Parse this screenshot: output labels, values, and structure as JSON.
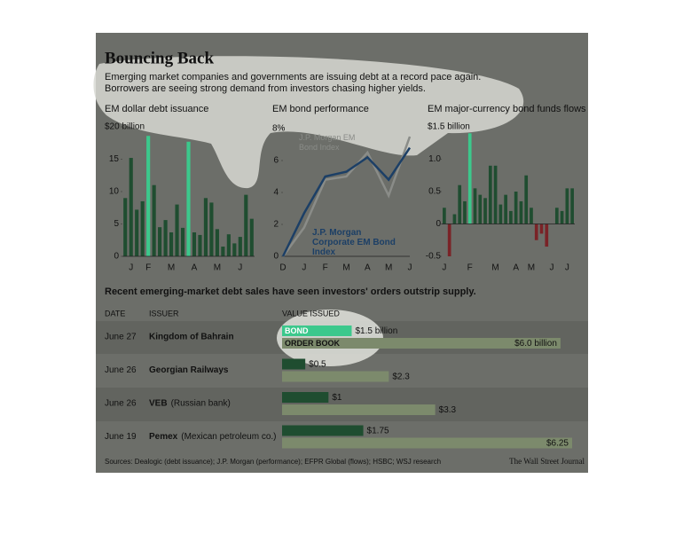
{
  "header": {
    "title": "Bouncing Back",
    "subtitle": "Emerging market companies and governments are issuing debt at a record pace again. Borrowers are seeing strong demand from investors chasing higher yields."
  },
  "chart_data": [
    {
      "type": "bar",
      "title": "EM dollar debt issuance",
      "categories": [
        null,
        "J",
        null,
        null,
        "F",
        null,
        null,
        null,
        "M",
        null,
        null,
        null,
        "A",
        null,
        null,
        null,
        "M",
        null,
        null,
        null,
        "J",
        null,
        null
      ],
      "values": [
        9,
        15.2,
        7.2,
        8.5,
        18.6,
        11,
        4.5,
        5.6,
        3.7,
        8,
        4.4,
        17.7,
        3.7,
        3.3,
        9,
        8.3,
        4.2,
        1.5,
        3.4,
        2,
        3,
        9.5,
        5.8
      ],
      "color": "#1f4d30",
      "highlight": [
        4,
        11
      ],
      "highlight_color": "#3cc88c",
      "ylim": [
        0,
        20
      ],
      "yticks": [
        0,
        5,
        10,
        15,
        {
          "value": 20,
          "label": "$20 billion"
        }
      ]
    },
    {
      "type": "line",
      "title": "EM bond performance",
      "categories": [
        "D",
        "J",
        "F",
        "M",
        "A",
        "M",
        "J"
      ],
      "series": [
        {
          "name": "J.P. Morgan EM Bond Index",
          "color": "#8a8c88",
          "values": [
            0,
            1.8,
            4.8,
            5,
            6.5,
            3.8,
            7.5
          ]
        },
        {
          "name": "J.P. Morgan Corporate EM Bond Index",
          "color": "#1c3f66",
          "values": [
            0,
            2.7,
            5,
            5.3,
            6.2,
            4.8,
            6.8
          ]
        }
      ],
      "ylim": [
        0,
        8
      ],
      "yticks": [
        0,
        2,
        4,
        6,
        {
          "value": 8,
          "label": "8%"
        }
      ]
    },
    {
      "type": "bar",
      "title": "EM major-currency bond funds flows",
      "categories": [
        "J",
        null,
        null,
        null,
        null,
        "F",
        null,
        null,
        null,
        null,
        "M",
        null,
        null,
        null,
        "A",
        null,
        null,
        "M",
        null,
        null,
        null,
        "J",
        null,
        null,
        "J",
        null
      ],
      "values": [
        0.25,
        -0.5,
        0.15,
        0.6,
        0.35,
        1.4,
        0.55,
        0.45,
        0.4,
        0.9,
        0.9,
        0.3,
        0.45,
        0.2,
        0.5,
        0.35,
        0.75,
        0.25,
        -0.25,
        -0.15,
        -0.35,
        0,
        0.25,
        0.2,
        0.55,
        0.55
      ],
      "color": "#1f4d30",
      "negative_color": "#7a2327",
      "highlight": [
        5
      ],
      "highlight_color": "#3cc88c",
      "ylim": [
        -0.5,
        1.5
      ],
      "yticks": [
        -0.5,
        0,
        0.5,
        {
          "value": 1,
          "label": "1.0"
        },
        {
          "value": 1.5,
          "label": "$1.5 billion"
        }
      ]
    },
    {
      "type": "paired-hbar",
      "title": "Recent emerging-market debt sales have seen investors' orders outstrip supply.",
      "columns": [
        "DATE",
        "ISSUER",
        "VALUE ISSUED"
      ],
      "dates": [
        "June 27",
        "June 26",
        "June 26",
        "June 19"
      ],
      "issuers": [
        {
          "name": "Kingdom of Bahrain"
        },
        {
          "name": "Georgian Railways"
        },
        {
          "name": "VEB",
          "note": "(Russian bank)"
        },
        {
          "name": "Pemex",
          "note": "(Mexican petroleum co.)"
        }
      ],
      "series": [
        {
          "name": "BOND",
          "color": "#1f4d30",
          "highlight_color": "#3cc88c",
          "values": [
            1.5,
            0.5,
            1,
            1.75
          ],
          "value_labels": [
            "$1.5 billion",
            "$0.5",
            "$1",
            "$1.75"
          ]
        },
        {
          "name": "ORDER BOOK",
          "color": "#7c8a6c",
          "values": [
            6.0,
            2.3,
            3.3,
            6.25
          ],
          "value_labels": [
            "$6.0 billion",
            "$2.3",
            "$3.3",
            "$6.25"
          ]
        }
      ]
    }
  ],
  "footer": {
    "sources": "Sources: Dealogic (debt issuance); J.P. Morgan (performance); EFPR Global (flows); HSBC; WSJ research",
    "credit": "The Wall Street Journal"
  }
}
